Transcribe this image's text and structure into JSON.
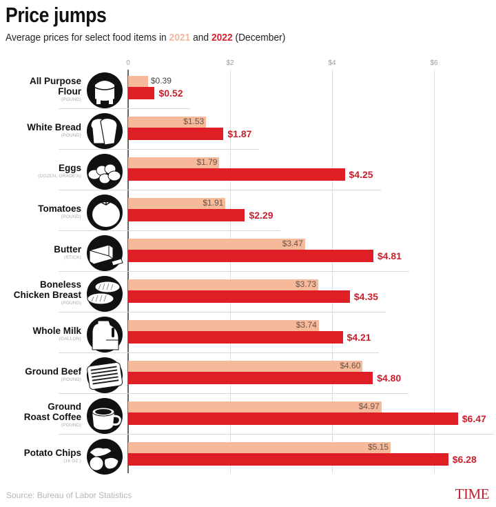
{
  "header": {
    "title": "Price jumps",
    "subtitle_prefix": "Average prices for select food items in ",
    "subtitle_year1": "2021",
    "subtitle_mid": " and ",
    "subtitle_year2": "2022",
    "subtitle_suffix": " (December)"
  },
  "axis": {
    "ticks": [
      {
        "value": 0,
        "label": "0"
      },
      {
        "value": 2,
        "label": "$2"
      },
      {
        "value": 4,
        "label": "$4"
      },
      {
        "value": 6,
        "label": "$6"
      }
    ]
  },
  "colors": {
    "year2021": "#f6b99a",
    "year2022": "#e01e26",
    "label2022": "#c9202e",
    "brand": "#c0212f"
  },
  "footer": {
    "source": "Source: Bureau of Labor Statistics",
    "brand": "TIME"
  },
  "chart_data": {
    "type": "bar",
    "orientation": "horizontal",
    "title": "Price jumps",
    "subtitle": "Average prices for select food items in 2021 and 2022 (December)",
    "xlabel": "",
    "ylabel": "",
    "xlim": [
      0,
      6.6
    ],
    "grid": true,
    "legend_position": "subtitle",
    "categories": [
      "All Purpose Flour",
      "White Bread",
      "Eggs",
      "Tomatoes",
      "Butter",
      "Boneless Chicken Breast",
      "Whole Milk",
      "Ground Beef",
      "Ground Roast Coffee",
      "Potato Chips"
    ],
    "units": [
      "(POUND)",
      "(POUND)",
      "(DOZEN, GRADE A)",
      "(POUND)",
      "(STICK)",
      "(POUND)",
      "(GALLON)",
      "(POUND)",
      "(POUND)",
      "(16 OZ.)"
    ],
    "series": [
      {
        "name": "2021",
        "color": "#f6b99a",
        "values": [
          0.39,
          1.53,
          1.79,
          1.91,
          3.47,
          3.73,
          3.74,
          4.6,
          4.97,
          5.15
        ]
      },
      {
        "name": "2022",
        "color": "#e01e26",
        "values": [
          0.52,
          1.87,
          4.25,
          2.29,
          4.81,
          4.35,
          4.21,
          4.8,
          6.47,
          6.28
        ]
      }
    ],
    "x_tick_labels": [
      "0",
      "$2",
      "$4",
      "$6"
    ],
    "source": "Source: Bureau of Labor Statistics"
  },
  "items": [
    {
      "name_lines": [
        "All Purpose",
        "Flour"
      ],
      "unit": "(POUND)",
      "icon": "flour-bag-icon",
      "v2021": 0.39,
      "v2022": 0.52,
      "l2021": "$0.39",
      "l2022": "$0.52"
    },
    {
      "name_lines": [
        "White Bread"
      ],
      "unit": "(POUND)",
      "icon": "bread-slice-icon",
      "v2021": 1.53,
      "v2022": 1.87,
      "l2021": "$1.53",
      "l2022": "$1.87"
    },
    {
      "name_lines": [
        "Eggs"
      ],
      "unit": "(DOZEN, GRADE A)",
      "icon": "eggs-icon",
      "v2021": 1.79,
      "v2022": 4.25,
      "l2021": "$1.79",
      "l2022": "$4.25"
    },
    {
      "name_lines": [
        "Tomatoes"
      ],
      "unit": "(POUND)",
      "icon": "tomato-icon",
      "v2021": 1.91,
      "v2022": 2.29,
      "l2021": "$1.91",
      "l2022": "$2.29"
    },
    {
      "name_lines": [
        "Butter"
      ],
      "unit": "(STICK)",
      "icon": "butter-icon",
      "v2021": 3.47,
      "v2022": 4.81,
      "l2021": "$3.47",
      "l2022": "$4.81"
    },
    {
      "name_lines": [
        "Boneless",
        "Chicken Breast"
      ],
      "unit": "(POUND)",
      "icon": "chicken-breast-icon",
      "v2021": 3.73,
      "v2022": 4.35,
      "l2021": "$3.73",
      "l2022": "$4.35"
    },
    {
      "name_lines": [
        "Whole Milk"
      ],
      "unit": "(GALLON)",
      "icon": "milk-jug-icon",
      "v2021": 3.74,
      "v2022": 4.21,
      "l2021": "$3.74",
      "l2022": "$4.21"
    },
    {
      "name_lines": [
        "Ground Beef"
      ],
      "unit": "(POUND)",
      "icon": "ground-beef-icon",
      "v2021": 4.6,
      "v2022": 4.8,
      "l2021": "$4.60",
      "l2022": "$4.80"
    },
    {
      "name_lines": [
        "Ground",
        "Roast Coffee"
      ],
      "unit": "(POUND)",
      "icon": "coffee-cup-icon",
      "v2021": 4.97,
      "v2022": 6.47,
      "l2021": "$4.97",
      "l2022": "$6.47"
    },
    {
      "name_lines": [
        "Potato Chips"
      ],
      "unit": "(16 OZ.)",
      "icon": "potato-chips-icon",
      "v2021": 5.15,
      "v2022": 6.28,
      "l2021": "$5.15",
      "l2022": "$6.28"
    }
  ]
}
